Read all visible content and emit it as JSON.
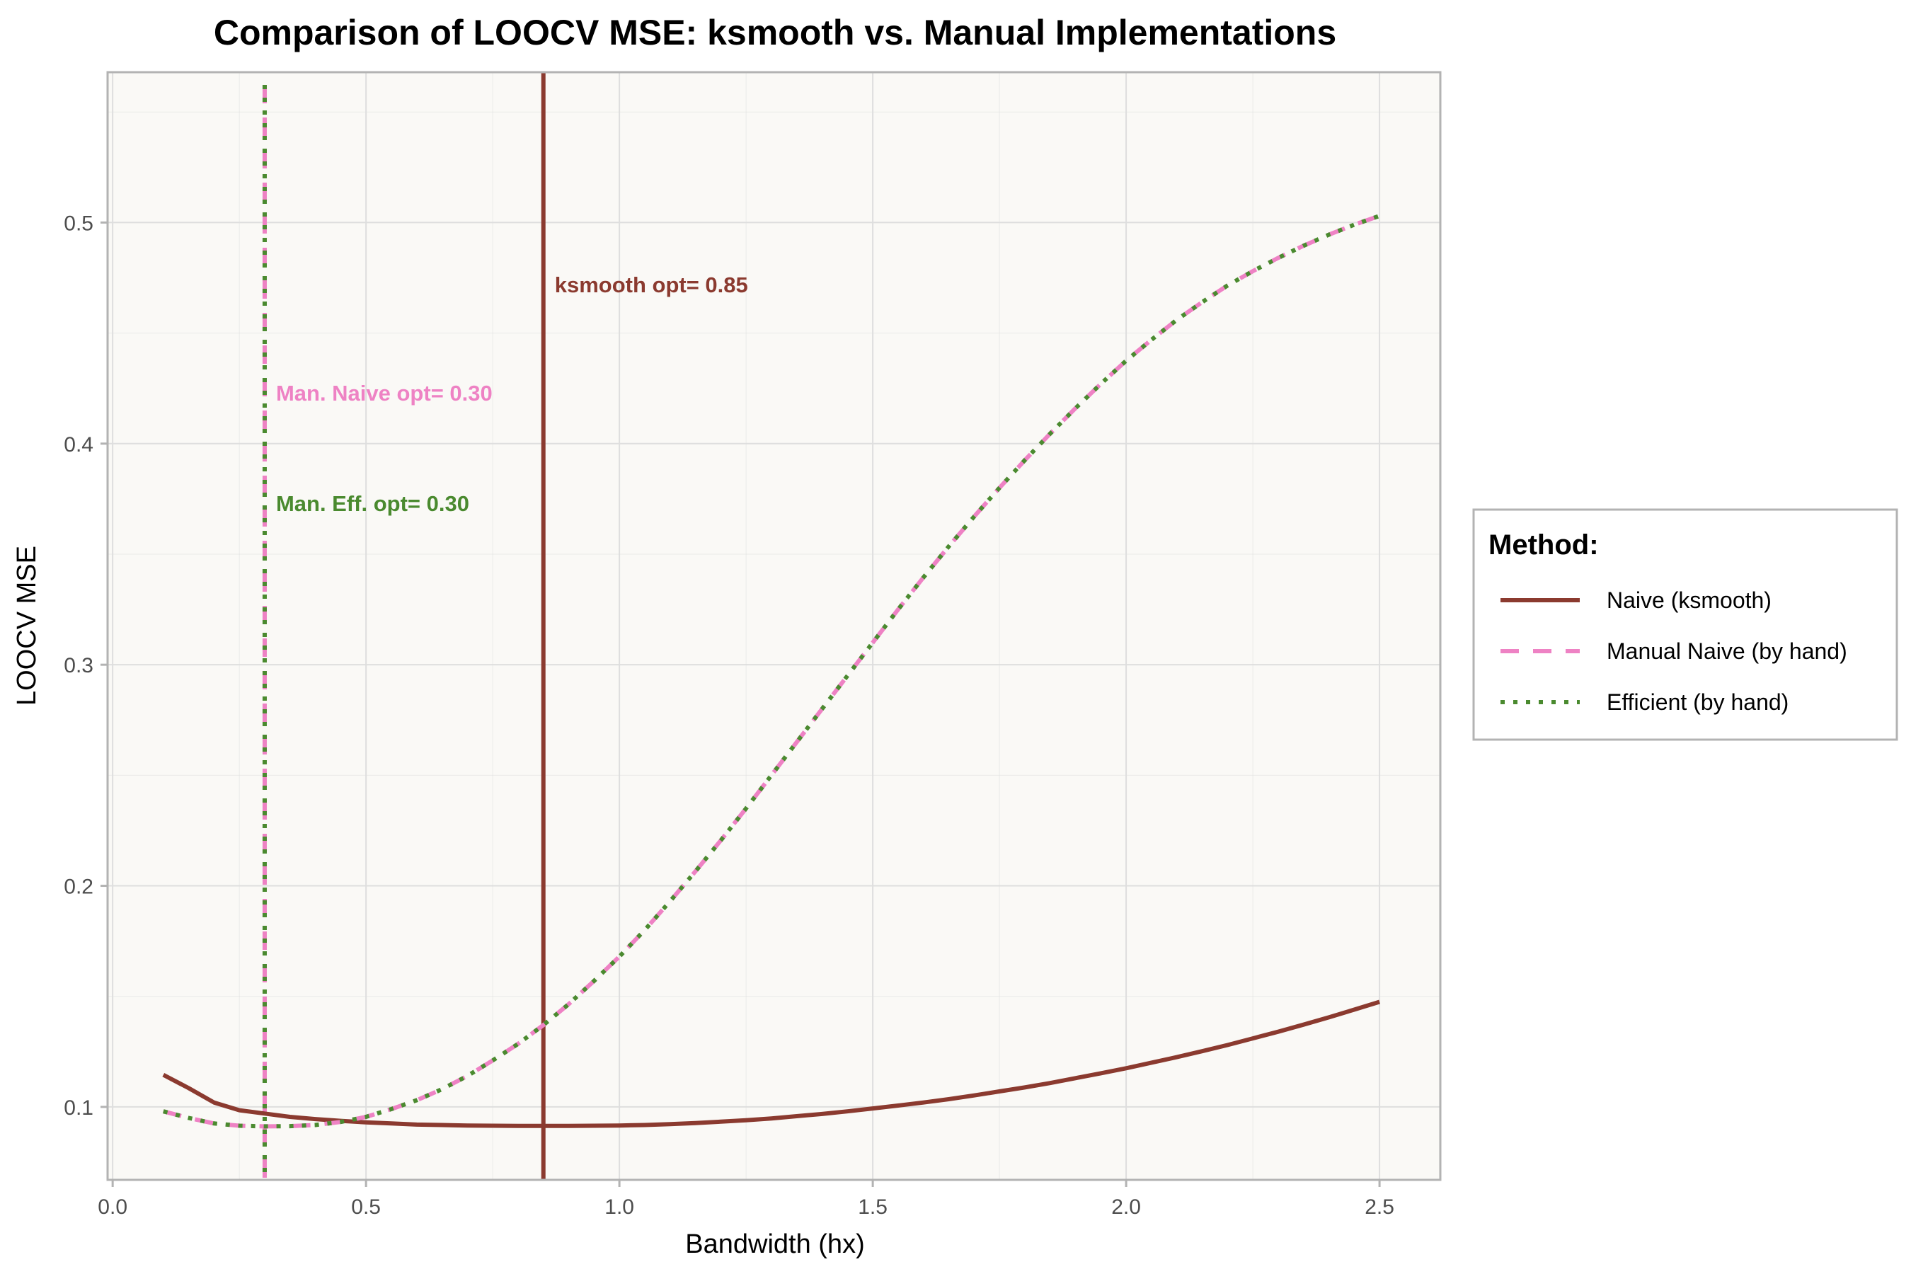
{
  "chart_data": {
    "type": "line",
    "title": "Comparison of LOOCV MSE: ksmooth vs. Manual Implementations",
    "xlabel": "Bandwidth (hx)",
    "ylabel": "LOOCV MSE",
    "xlim": [
      -0.01,
      2.62
    ],
    "ylim": [
      0.067,
      0.568
    ],
    "x_ticks": [
      0.0,
      0.5,
      1.0,
      1.5,
      2.0,
      2.5
    ],
    "x_tick_labels": [
      "0.0",
      "0.5",
      "1.0",
      "1.5",
      "2.0",
      "2.5"
    ],
    "y_ticks": [
      0.1,
      0.2,
      0.3,
      0.4,
      0.5
    ],
    "y_tick_labels": [
      "0.1",
      "0.2",
      "0.3",
      "0.4",
      "0.5"
    ],
    "grid": true,
    "x": [
      0.1,
      0.15,
      0.2,
      0.25,
      0.3,
      0.35,
      0.4,
      0.45,
      0.5,
      0.55,
      0.6,
      0.65,
      0.7,
      0.75,
      0.8,
      0.85,
      0.9,
      0.95,
      1.0,
      1.05,
      1.1,
      1.15,
      1.2,
      1.25,
      1.3,
      1.35,
      1.4,
      1.45,
      1.5,
      1.55,
      1.6,
      1.65,
      1.7,
      1.75,
      1.8,
      1.85,
      1.9,
      1.95,
      2.0,
      2.05,
      2.1,
      2.15,
      2.2,
      2.25,
      2.3,
      2.35,
      2.4,
      2.45,
      2.5
    ],
    "series": [
      {
        "name": "Naive (ksmooth)",
        "color": "#8b3a2f",
        "dash": "solid",
        "values": [
          0.1145,
          0.1085,
          0.102,
          0.0985,
          0.097,
          0.0955,
          0.0945,
          0.0937,
          0.093,
          0.0925,
          0.092,
          0.0918,
          0.0916,
          0.0915,
          0.0914,
          0.0914,
          0.0914,
          0.0915,
          0.0916,
          0.0918,
          0.0922,
          0.0927,
          0.0933,
          0.094,
          0.0948,
          0.0958,
          0.0968,
          0.098,
          0.0993,
          0.1006,
          0.102,
          0.1035,
          0.1052,
          0.107,
          0.1088,
          0.1108,
          0.113,
          0.1152,
          0.1175,
          0.12,
          0.1225,
          0.1252,
          0.128,
          0.131,
          0.134,
          0.1372,
          0.1405,
          0.144,
          0.1475
        ]
      },
      {
        "name": "Manual Naive (by hand)",
        "color": "#ee82c4",
        "dash": "dashed",
        "values": [
          0.098,
          0.095,
          0.0925,
          0.0915,
          0.0912,
          0.0913,
          0.0918,
          0.0932,
          0.0955,
          0.099,
          0.103,
          0.108,
          0.114,
          0.121,
          0.1285,
          0.137,
          0.1465,
          0.157,
          0.168,
          0.18,
          0.193,
          0.2065,
          0.2205,
          0.235,
          0.25,
          0.265,
          0.28,
          0.295,
          0.31,
          0.325,
          0.3395,
          0.3535,
          0.367,
          0.38,
          0.3925,
          0.4045,
          0.416,
          0.427,
          0.4375,
          0.447,
          0.456,
          0.464,
          0.4715,
          0.478,
          0.484,
          0.4895,
          0.4945,
          0.499,
          0.503
        ]
      },
      {
        "name": "Efficient (by hand)",
        "color": "#4a8a2f",
        "dash": "dotted",
        "values": [
          0.098,
          0.095,
          0.0925,
          0.0915,
          0.0912,
          0.0913,
          0.0918,
          0.0932,
          0.0955,
          0.099,
          0.103,
          0.108,
          0.114,
          0.121,
          0.1285,
          0.137,
          0.1465,
          0.157,
          0.168,
          0.18,
          0.193,
          0.2065,
          0.2205,
          0.235,
          0.25,
          0.265,
          0.28,
          0.295,
          0.31,
          0.325,
          0.3395,
          0.3535,
          0.367,
          0.38,
          0.3925,
          0.4045,
          0.416,
          0.427,
          0.4375,
          0.447,
          0.456,
          0.464,
          0.4715,
          0.478,
          0.484,
          0.4895,
          0.4945,
          0.499,
          0.503
        ]
      }
    ],
    "vlines": [
      {
        "x": 0.85,
        "color": "#8b3a2f",
        "dash": "solid",
        "label": "ksmooth opt= 0.85",
        "label_y": 0.472
      },
      {
        "x": 0.3,
        "color": "#ee82c4",
        "dash": "dashed",
        "label": "Man. Naive opt= 0.30",
        "label_y": 0.423
      },
      {
        "x": 0.3,
        "color": "#4a8a2f",
        "dash": "dotted",
        "label": "Man. Eff. opt= 0.30",
        "label_y": 0.373
      }
    ],
    "legend": {
      "title": "Method:",
      "position": "right",
      "entries": [
        "Naive (ksmooth)",
        "Manual Naive (by hand)",
        "Efficient (by hand)"
      ]
    },
    "background_color": "#faf9f6",
    "grid_color": "#dedede"
  }
}
